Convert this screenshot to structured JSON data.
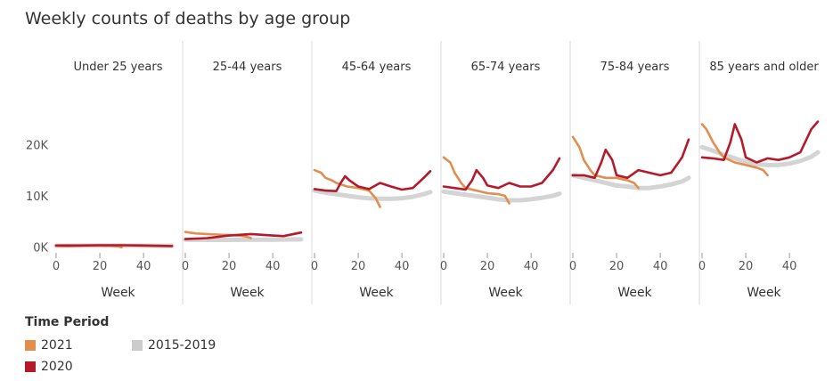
{
  "chart_data": {
    "type": "line",
    "title": "Weekly counts of deaths by age group",
    "xlabel": "Week",
    "ylabel": "",
    "x_ticks": [
      0,
      20,
      40
    ],
    "xlim": [
      0,
      53
    ],
    "y_ticks": [
      "0K",
      "10K",
      "20K"
    ],
    "y_tick_values": [
      0,
      10000,
      20000
    ],
    "ylim": [
      -1000,
      26000
    ],
    "legend_title": "Time Period",
    "legend_position": "bottom-left",
    "series_styles": {
      "2021": {
        "color": "#e08f4f"
      },
      "2020": {
        "color": "#b51a2a"
      },
      "2015-2019": {
        "color": "#cccccc"
      }
    },
    "panels": [
      {
        "name": "Under 25 years",
        "series": [
          {
            "name": "2021",
            "x": [
              0,
              5,
              10,
              15,
              20,
              25,
              28,
              30
            ],
            "values": [
              200,
              150,
              200,
              250,
              250,
              200,
              100,
              -100
            ]
          },
          {
            "name": "2020",
            "x": [
              0,
              10,
              20,
              30,
              40,
              45,
              53
            ],
            "values": [
              250,
              250,
              300,
              300,
              250,
              200,
              150
            ]
          },
          {
            "name": "2015-2019",
            "x": [
              0,
              10,
              20,
              30,
              40,
              53
            ],
            "values": [
              200,
              220,
              230,
              230,
              210,
              200
            ]
          }
        ]
      },
      {
        "name": "25-44 years",
        "series": [
          {
            "name": "2021",
            "x": [
              0,
              5,
              10,
              15,
              20,
              25,
              28,
              30
            ],
            "values": [
              2900,
              2600,
              2500,
              2400,
              2300,
              2200,
              2000,
              1700
            ]
          },
          {
            "name": "2020",
            "x": [
              0,
              10,
              12,
              20,
              30,
              40,
              45,
              53
            ],
            "values": [
              1500,
              1700,
              1800,
              2200,
              2500,
              2200,
              2100,
              2800
            ]
          },
          {
            "name": "2015-2019",
            "x": [
              0,
              10,
              20,
              30,
              40,
              53
            ],
            "values": [
              1400,
              1350,
              1350,
              1400,
              1400,
              1450
            ]
          }
        ]
      },
      {
        "name": "45-64 years",
        "series": [
          {
            "name": "2021",
            "x": [
              0,
              3,
              5,
              8,
              10,
              15,
              20,
              25,
              28,
              30
            ],
            "values": [
              15000,
              14500,
              13500,
              13000,
              12500,
              11800,
              11500,
              11000,
              9500,
              7800
            ]
          },
          {
            "name": "2020",
            "x": [
              0,
              5,
              10,
              12,
              14,
              16,
              20,
              25,
              30,
              35,
              40,
              45,
              50,
              53
            ],
            "values": [
              11300,
              11000,
              10900,
              12500,
              13800,
              13000,
              11800,
              11300,
              12500,
              11800,
              11200,
              11500,
              13500,
              14800
            ]
          },
          {
            "name": "2015-2019",
            "x": [
              0,
              5,
              10,
              15,
              20,
              25,
              30,
              35,
              40,
              45,
              50,
              53
            ],
            "values": [
              11000,
              10600,
              10300,
              10000,
              9700,
              9500,
              9400,
              9400,
              9500,
              9800,
              10300,
              10700
            ]
          }
        ]
      },
      {
        "name": "65-74 years",
        "series": [
          {
            "name": "2021",
            "x": [
              0,
              3,
              5,
              8,
              10,
              15,
              20,
              25,
              28,
              30
            ],
            "values": [
              17500,
              16500,
              14500,
              12500,
              11500,
              11000,
              10500,
              10300,
              10000,
              8500
            ]
          },
          {
            "name": "2020",
            "x": [
              0,
              5,
              10,
              13,
              15,
              18,
              20,
              25,
              30,
              35,
              40,
              45,
              50,
              53
            ],
            "values": [
              11800,
              11500,
              11200,
              13000,
              15000,
              13500,
              12000,
              11500,
              12500,
              11800,
              11800,
              12500,
              15000,
              17300
            ]
          },
          {
            "name": "2015-2019",
            "x": [
              0,
              5,
              10,
              15,
              20,
              25,
              30,
              35,
              40,
              45,
              50,
              53
            ],
            "values": [
              10800,
              10500,
              10200,
              9900,
              9600,
              9300,
              9100,
              9100,
              9300,
              9600,
              10000,
              10400
            ]
          }
        ]
      },
      {
        "name": "75-84 years",
        "series": [
          {
            "name": "2021",
            "x": [
              0,
              3,
              5,
              8,
              10,
              15,
              20,
              25,
              28,
              30
            ],
            "values": [
              21500,
              19500,
              17000,
              15000,
              14000,
              13500,
              13500,
              13000,
              12500,
              11500
            ]
          },
          {
            "name": "2020",
            "x": [
              0,
              5,
              10,
              13,
              15,
              18,
              20,
              25,
              30,
              35,
              40,
              45,
              50,
              53
            ],
            "values": [
              14000,
              14000,
              13500,
              16500,
              19000,
              17000,
              14000,
              13500,
              15000,
              14500,
              14000,
              14500,
              17500,
              21000
            ]
          },
          {
            "name": "2015-2019",
            "x": [
              0,
              5,
              10,
              15,
              20,
              25,
              30,
              35,
              40,
              45,
              50,
              53
            ],
            "values": [
              14000,
              13500,
              13000,
              12500,
              12000,
              11800,
              11500,
              11500,
              11800,
              12200,
              12800,
              13500
            ]
          }
        ]
      },
      {
        "name": "85 years and older",
        "series": [
          {
            "name": "2021",
            "x": [
              0,
              2,
              5,
              8,
              10,
              15,
              20,
              25,
              28,
              30
            ],
            "values": [
              24000,
              23000,
              20500,
              18500,
              17500,
              16500,
              16000,
              15500,
              15000,
              14000
            ]
          },
          {
            "name": "2020",
            "x": [
              0,
              5,
              10,
              13,
              15,
              18,
              20,
              25,
              30,
              35,
              40,
              45,
              50,
              53
            ],
            "values": [
              17500,
              17300,
              17000,
              20500,
              24000,
              21000,
              17500,
              16500,
              17300,
              17000,
              17500,
              18500,
              23000,
              24500
            ]
          },
          {
            "name": "2015-2019",
            "x": [
              0,
              5,
              10,
              15,
              20,
              25,
              30,
              35,
              40,
              45,
              50,
              53
            ],
            "values": [
              19500,
              18800,
              18000,
              17300,
              16600,
              16200,
              16000,
              16000,
              16300,
              16800,
              17600,
              18500
            ]
          }
        ]
      }
    ]
  }
}
